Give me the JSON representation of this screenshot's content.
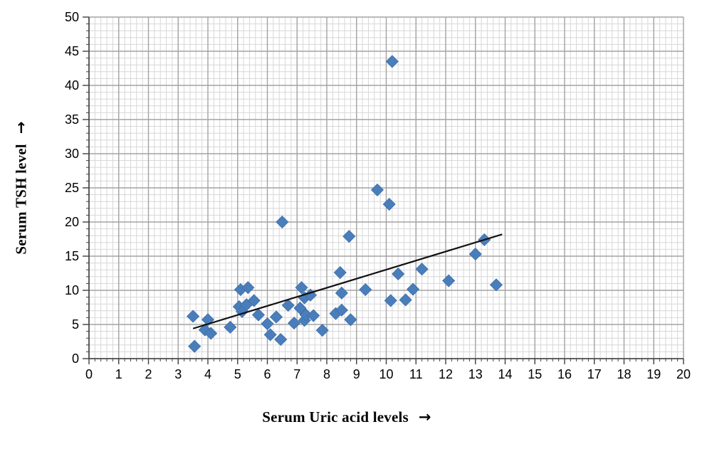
{
  "chart_data": {
    "type": "scatter",
    "title": "",
    "xlabel_text": "Serum Uric acid levels",
    "xlabel_arrow": "→",
    "ylabel_text": "Serum TSH level",
    "ylabel_arrow": "→",
    "xlim": [
      0,
      20
    ],
    "ylim": [
      0,
      50
    ],
    "x_major_step": 1,
    "x_minor_step": 0.2,
    "y_major_step": 5,
    "y_minor_step": 1,
    "grid": "major-and-minor",
    "legend": "none",
    "marker": "diamond",
    "colors": {
      "marker_fill": "#4a7ebb",
      "marker_edge": "#3d6ea8",
      "grid_minor": "#d7d7d7",
      "grid_major": "#a3a3a3",
      "axis_line": "#3f3f3f",
      "trendline": "#111111",
      "background": "#ffffff"
    },
    "points": [
      [
        3.5,
        6.2
      ],
      [
        3.55,
        1.8
      ],
      [
        3.9,
        4.2
      ],
      [
        4.0,
        5.7
      ],
      [
        4.1,
        3.7
      ],
      [
        4.75,
        4.6
      ],
      [
        5.05,
        7.6
      ],
      [
        5.1,
        10.1
      ],
      [
        5.15,
        6.9
      ],
      [
        5.3,
        7.9
      ],
      [
        5.35,
        10.4
      ],
      [
        5.55,
        8.5
      ],
      [
        5.7,
        6.4
      ],
      [
        6.0,
        5.1
      ],
      [
        6.1,
        3.5
      ],
      [
        6.3,
        6.1
      ],
      [
        6.45,
        2.8
      ],
      [
        6.5,
        20.0
      ],
      [
        6.7,
        7.8
      ],
      [
        6.9,
        5.2
      ],
      [
        7.1,
        7.4
      ],
      [
        7.15,
        10.4
      ],
      [
        7.25,
        8.9
      ],
      [
        7.25,
        5.6
      ],
      [
        7.3,
        6.4
      ],
      [
        7.45,
        9.3
      ],
      [
        7.55,
        6.3
      ],
      [
        7.85,
        4.15
      ],
      [
        8.3,
        6.6
      ],
      [
        8.45,
        12.6
      ],
      [
        8.5,
        7.1
      ],
      [
        8.5,
        9.6
      ],
      [
        8.75,
        17.9
      ],
      [
        8.8,
        5.7
      ],
      [
        9.3,
        10.1
      ],
      [
        9.7,
        24.7
      ],
      [
        10.1,
        22.6
      ],
      [
        10.15,
        8.5
      ],
      [
        10.2,
        43.5
      ],
      [
        10.4,
        12.4
      ],
      [
        10.65,
        8.6
      ],
      [
        10.9,
        10.15
      ],
      [
        11.2,
        13.1
      ],
      [
        12.1,
        11.4
      ],
      [
        13.0,
        15.3
      ],
      [
        13.3,
        17.4
      ],
      [
        13.7,
        10.8
      ]
    ],
    "trendline": {
      "x1": 3.5,
      "y1": 4.4,
      "x2": 13.9,
      "y2": 18.2
    }
  }
}
